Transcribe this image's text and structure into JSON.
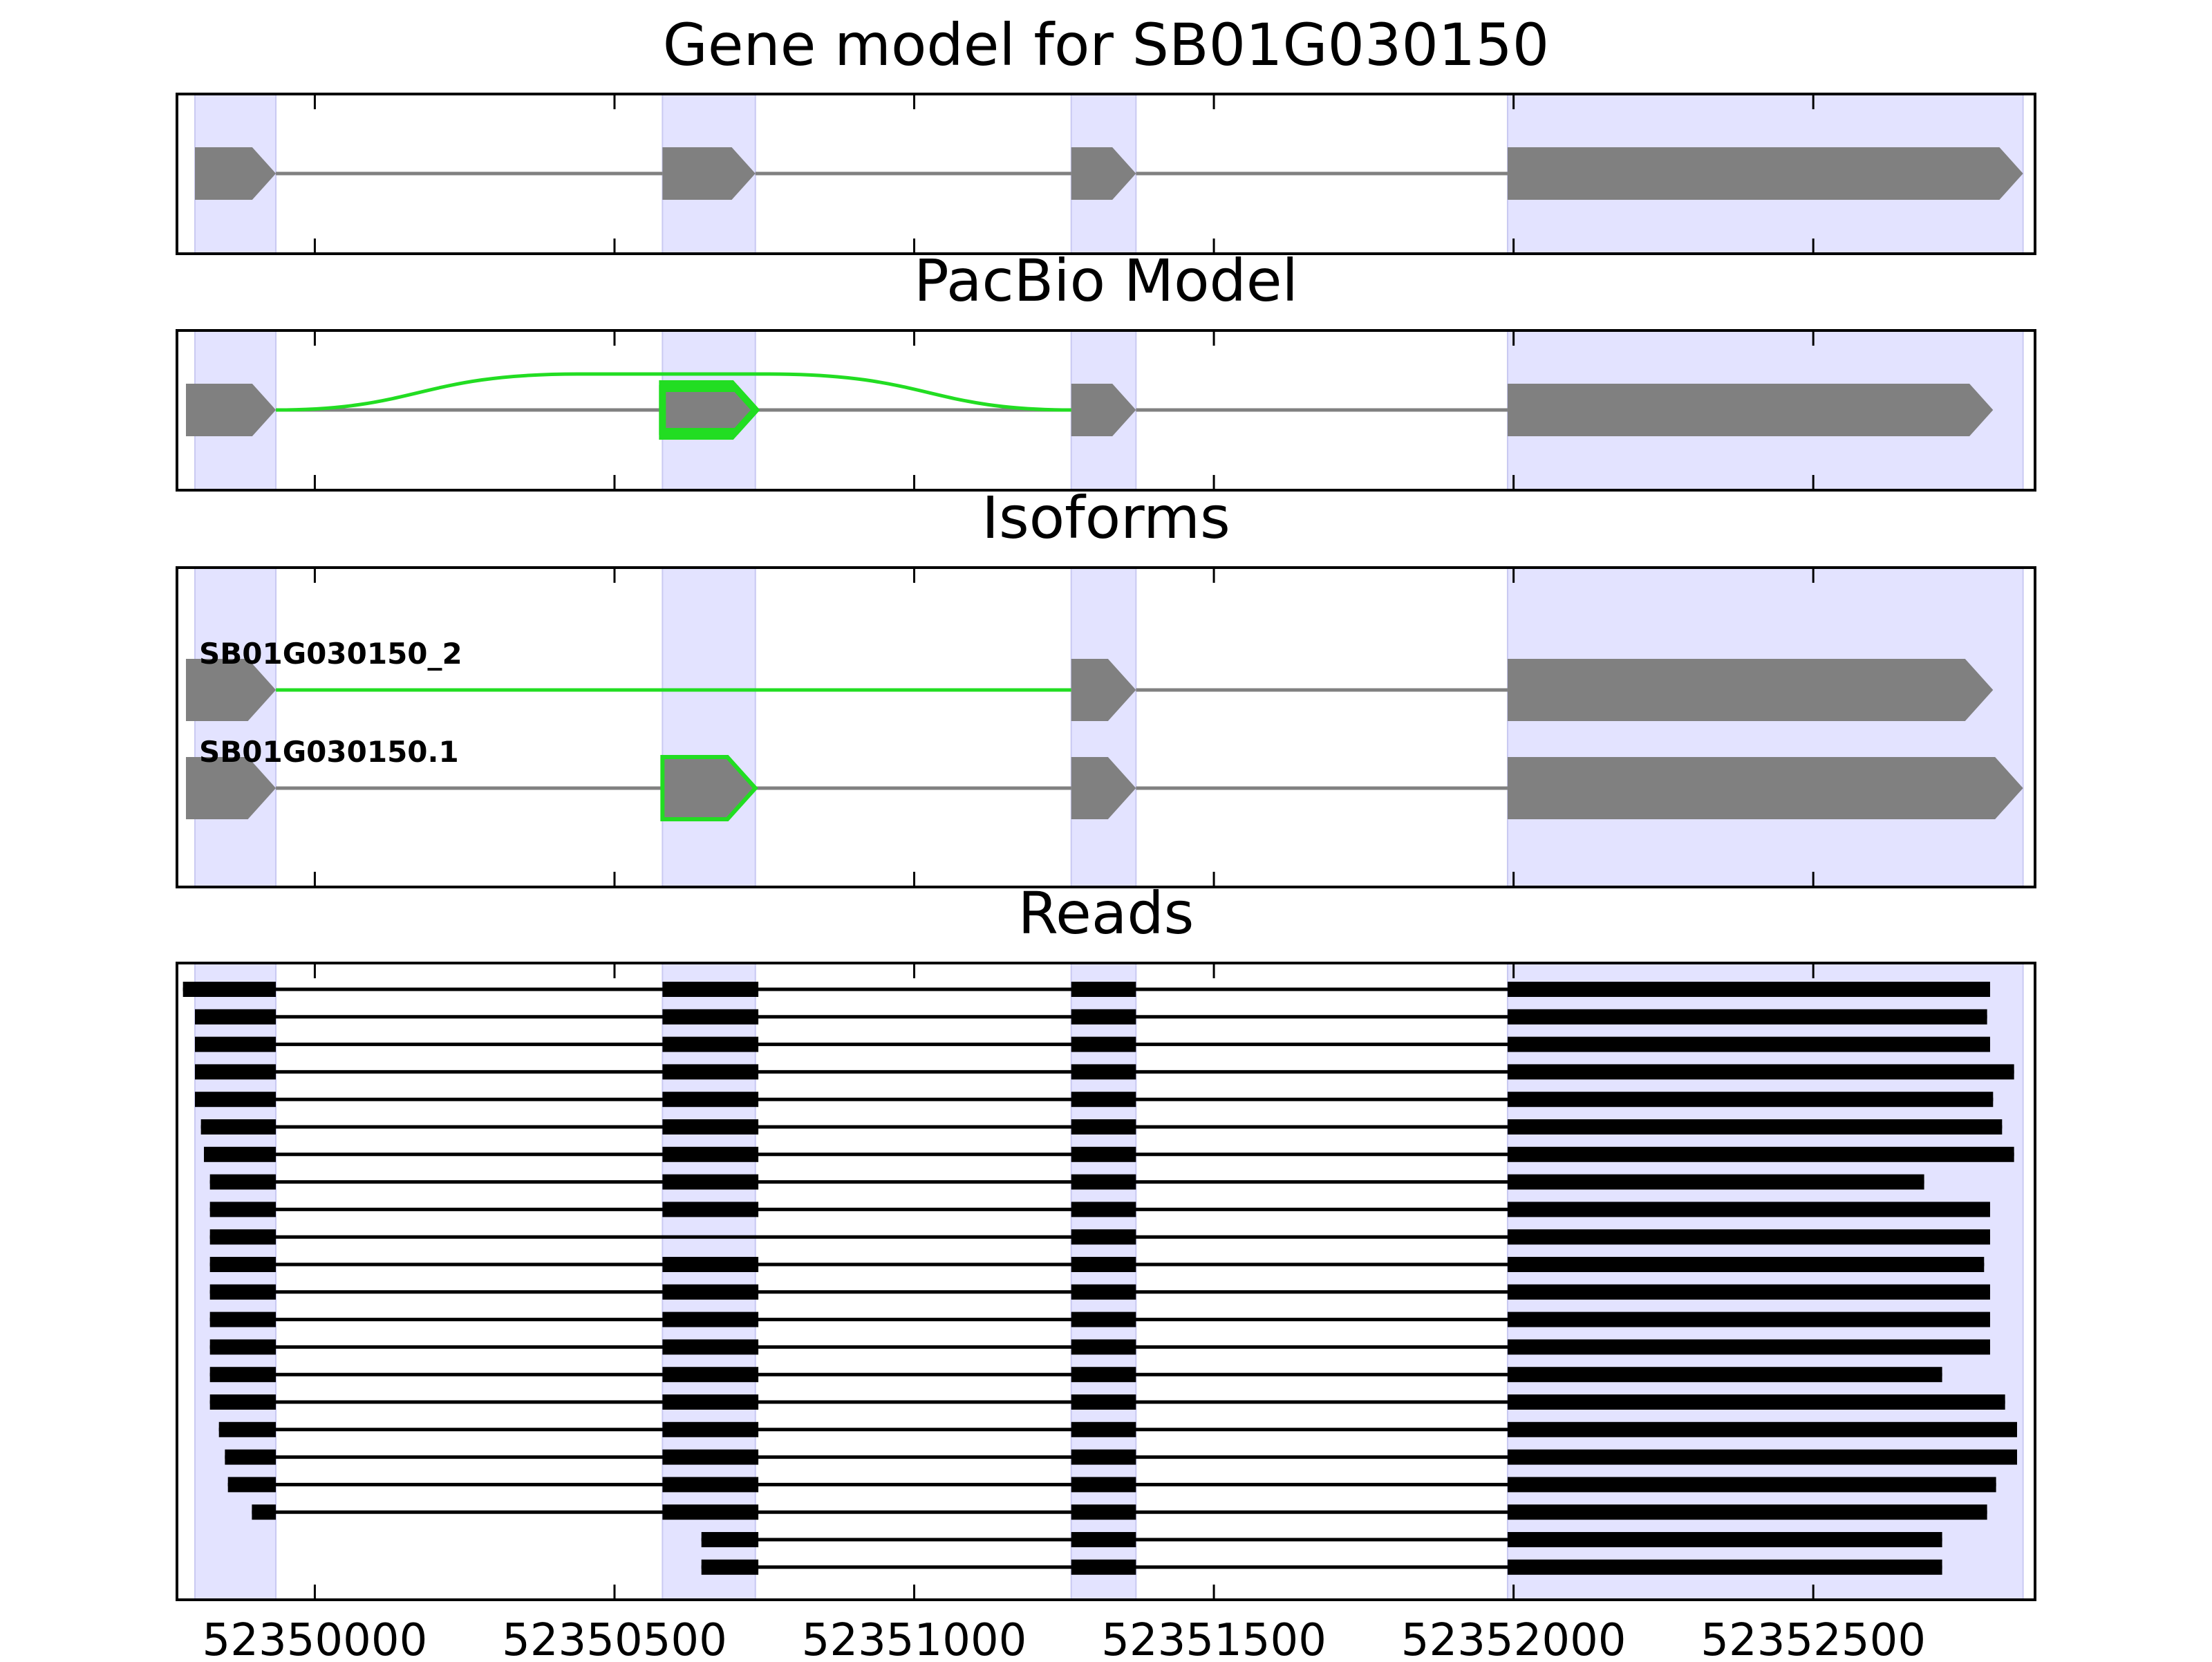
{
  "panels": {
    "gene_model": {
      "title": "Gene model for SB01G030150",
      "exons": [
        [
          52349800,
          52349935
        ],
        [
          52350580,
          52350735
        ],
        [
          52351262,
          52351370
        ],
        [
          52351990,
          52352850
        ]
      ]
    },
    "pacbio": {
      "title": "PacBio Model",
      "exons": [
        [
          52349785,
          52349935
        ],
        [
          52350580,
          52350735
        ],
        [
          52351262,
          52351370
        ],
        [
          52351990,
          52352800
        ]
      ],
      "highlighted_exon": 1,
      "skip_junction": [
        52349935,
        52351262
      ]
    },
    "isoforms": {
      "title": "Isoforms",
      "items": [
        {
          "label": "SB01G030150_2",
          "exons": [
            [
              52349785,
              52349935
            ],
            [
              52351262,
              52351370
            ],
            [
              52351990,
              52352800
            ]
          ],
          "green_intron": 0
        },
        {
          "label": "SB01G030150.1",
          "exons": [
            [
              52349785,
              52349935
            ],
            [
              52350580,
              52350735
            ],
            [
              52351262,
              52351370
            ],
            [
              52351990,
              52352850
            ]
          ],
          "highlighted_exon": 1
        }
      ]
    },
    "reads": {
      "title": "Reads",
      "items": [
        {
          "s": 52349780,
          "e": 52352795,
          "x1": true
        },
        {
          "s": 52349800,
          "e": 52352790,
          "x1": true
        },
        {
          "s": 52349800,
          "e": 52352795,
          "x1": true
        },
        {
          "s": 52349800,
          "e": 52352835,
          "x1": true
        },
        {
          "s": 52349800,
          "e": 52352800,
          "x1": true
        },
        {
          "s": 52349810,
          "e": 52352815,
          "x1": true
        },
        {
          "s": 52349815,
          "e": 52352835,
          "x1": true
        },
        {
          "s": 52349825,
          "e": 52352685,
          "x1": true
        },
        {
          "s": 52349825,
          "e": 52352795,
          "x1": true
        },
        {
          "s": 52349825,
          "e": 52352795,
          "x1": false
        },
        {
          "s": 52349825,
          "e": 52352785,
          "x1": true
        },
        {
          "s": 52349825,
          "e": 52352795,
          "x1": true
        },
        {
          "s": 52349825,
          "e": 52352795,
          "x1": true
        },
        {
          "s": 52349825,
          "e": 52352795,
          "x1": true
        },
        {
          "s": 52349825,
          "e": 52352715,
          "x1": true
        },
        {
          "s": 52349825,
          "e": 52352820,
          "x1": true
        },
        {
          "s": 52349840,
          "e": 52352840,
          "x1": true
        },
        {
          "s": 52349850,
          "e": 52352840,
          "x1": true
        },
        {
          "s": 52349855,
          "e": 52352805,
          "x1": true
        },
        {
          "s": 52349895,
          "e": 52352790,
          "x1": true
        },
        {
          "s": 52350645,
          "e": 52352715,
          "x1": true
        },
        {
          "s": 52350645,
          "e": 52352715,
          "x1": true
        }
      ]
    }
  },
  "x_axis": {
    "min": 52349770,
    "max": 52352870,
    "ticks": [
      52350000,
      52350500,
      52351000,
      52351500,
      52352000,
      52352500
    ],
    "tick_labels": [
      "52350000",
      "52350500",
      "52351000",
      "52351500",
      "52352000",
      "52352500"
    ]
  },
  "colors": {
    "shade": "#e3e3ff",
    "exon": "#808080",
    "highlight": "#22dd22",
    "read": "#000000"
  }
}
